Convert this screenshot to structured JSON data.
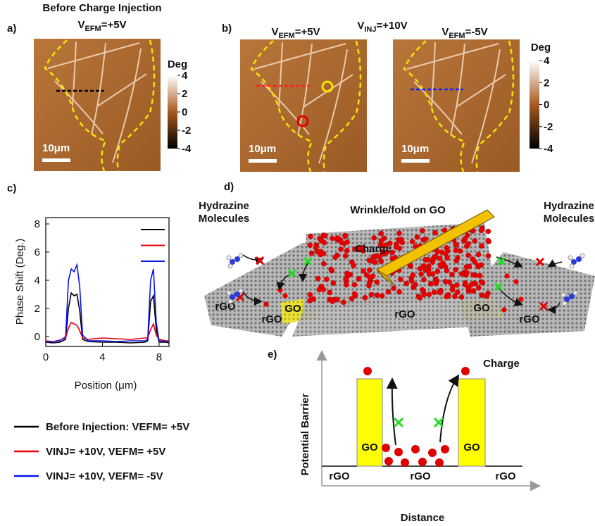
{
  "panel_a": {
    "label": "a)",
    "title": "Before Charge Injection",
    "condition": {
      "v": "V",
      "sub": "EFM",
      "rest": "=+5V"
    },
    "scale_bar": "10μm",
    "colorbar": {
      "label": "Deg",
      "ticks": [
        4,
        2,
        0,
        -2,
        -4
      ]
    }
  },
  "panel_b": {
    "label": "b)",
    "left_condition": {
      "v": "V",
      "sub": "EFM",
      "rest": "=+5V"
    },
    "injection": {
      "v": "V",
      "sub": "INJ",
      "rest": "=+10V"
    },
    "right_condition": {
      "v": "V",
      "sub": "EFM",
      "rest": "=-5V"
    },
    "scale_bars": [
      "10μm",
      "10μm"
    ],
    "colorbar": {
      "label": "Deg",
      "ticks": [
        4,
        2,
        0,
        -2,
        -4
      ]
    }
  },
  "chart_data": {
    "type": "line",
    "label": "c)",
    "x_label": "Position (μm)",
    "y_label": "Phase Shift (Deg.)",
    "x": [
      0,
      0.5,
      1,
      1.4,
      1.6,
      1.8,
      2.0,
      2.2,
      2.4,
      2.6,
      3,
      4,
      5,
      6,
      7,
      7.2,
      7.4,
      7.6,
      7.8,
      8,
      8.5,
      8.7
    ],
    "series": [
      {
        "name": "Before Injection: VEFM= +5V",
        "color": "#000000",
        "values": [
          -0.4,
          -0.45,
          -0.4,
          -0.2,
          2.0,
          3.1,
          2.9,
          3.0,
          1.8,
          -0.2,
          -0.35,
          -0.4,
          -0.4,
          -0.45,
          -0.4,
          -0.3,
          2.5,
          2.9,
          0.5,
          -0.4,
          -0.4,
          -0.45
        ]
      },
      {
        "name": "VINJ= +10V, VEFM= +5V",
        "color": "#e8000b",
        "values": [
          -0.3,
          -0.35,
          -0.25,
          -0.1,
          0.6,
          1.0,
          0.9,
          0.8,
          0.4,
          -0.1,
          -0.2,
          -0.1,
          -0.15,
          -0.2,
          -0.1,
          -0.1,
          0.5,
          0.9,
          0.1,
          -0.2,
          -0.3,
          -0.3
        ]
      },
      {
        "name": "VINJ= +10V, VEFM= -5V",
        "color": "#0a14e6",
        "values": [
          -0.4,
          -0.35,
          -0.3,
          0.0,
          4.0,
          4.8,
          4.6,
          5.1,
          3.5,
          0.1,
          -0.3,
          -0.3,
          -0.35,
          -0.3,
          -0.3,
          -0.2,
          4.0,
          4.8,
          1.0,
          -0.3,
          -0.35,
          -0.4
        ]
      }
    ],
    "xlim": [
      0,
      8.7
    ],
    "ylim": [
      -0.7,
      8.45
    ],
    "xticks": [
      0,
      4,
      8
    ],
    "yticks": [
      0,
      2,
      4,
      6,
      8
    ]
  },
  "panel_d": {
    "label": "d)",
    "title": "Wrinkle/fold on GO",
    "left_molecules": [
      "Hydrazine",
      "Molecules"
    ],
    "right_molecules": [
      "Hydrazine",
      "Molecules"
    ],
    "charge": "Charge",
    "go_labels": [
      "GO",
      "GO"
    ],
    "rgo_labels": [
      "rGO",
      "rGO",
      "rGO",
      "rGO"
    ]
  },
  "panel_e": {
    "label": "e)",
    "y_label": "Potential Barrier",
    "x_label": "Distance",
    "charge": "Charge",
    "go_labels": [
      "GO",
      "GO"
    ],
    "rgo_labels": [
      "rGO",
      "rGO",
      "rGO"
    ]
  }
}
